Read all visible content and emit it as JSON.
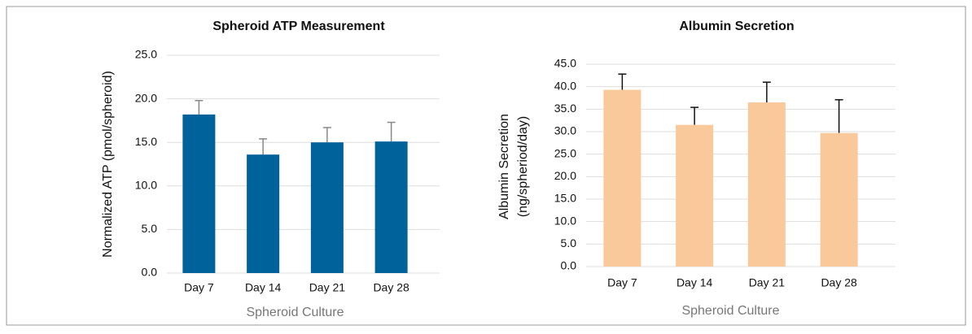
{
  "chart_data": [
    {
      "type": "bar",
      "title": "Spheroid ATP Measurement",
      "ylabel": [
        "Normalized ATP (pmol/spheroid)"
      ],
      "xlabel": "Spheroid Culture",
      "categories": [
        "Day 7",
        "Day 14",
        "Day 21",
        "Day 28"
      ],
      "values": [
        18.2,
        13.6,
        15.0,
        15.1
      ],
      "errors": [
        1.6,
        1.8,
        1.7,
        2.2
      ],
      "color": "#00629b",
      "error_color": "#888888",
      "ylim": [
        0,
        25
      ],
      "yticks": [
        {
          "value": 0,
          "label": "0.0"
        },
        {
          "value": 5,
          "label": "5.0"
        },
        {
          "value": 10,
          "label": "10.0"
        },
        {
          "value": 15,
          "label": "15.0"
        },
        {
          "value": 20,
          "label": "20.0"
        },
        {
          "value": 25,
          "label": "25.0"
        }
      ],
      "grid": true
    },
    {
      "type": "bar",
      "title": "Albumin Secretion",
      "ylabel": [
        "Albumin Secretion",
        "(ng/spheriod/day)"
      ],
      "xlabel": "Spheroid Culture",
      "categories": [
        "Day 7",
        "Day 14",
        "Day 21",
        "Day 28"
      ],
      "values": [
        39.3,
        31.5,
        36.5,
        29.7
      ],
      "errors": [
        3.5,
        3.9,
        4.5,
        7.4
      ],
      "color": "#f9c89b",
      "error_color": "#111111",
      "ylim": [
        0,
        45
      ],
      "yticks": [
        {
          "value": 0,
          "label": "0.0"
        },
        {
          "value": 5,
          "label": "5.0"
        },
        {
          "value": 10,
          "label": "10.0"
        },
        {
          "value": 15,
          "label": "15.0"
        },
        {
          "value": 20,
          "label": "20.0"
        },
        {
          "value": 25,
          "label": "25.0"
        },
        {
          "value": 30,
          "label": "30.0"
        },
        {
          "value": 35,
          "label": "35.0"
        },
        {
          "value": 40,
          "label": "40.0"
        },
        {
          "value": 45,
          "label": "45.0"
        }
      ],
      "grid": true
    }
  ]
}
